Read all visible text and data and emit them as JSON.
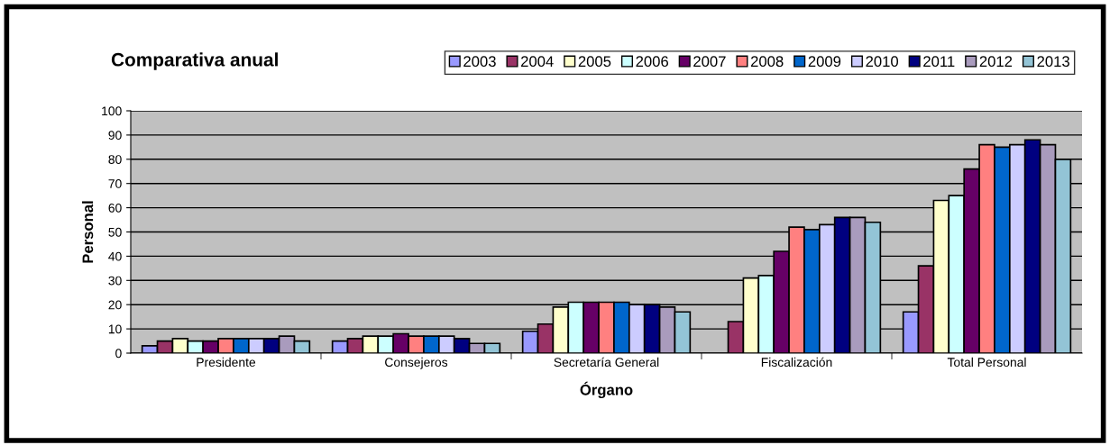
{
  "chart_data": {
    "type": "bar",
    "title": "Comparativa anual",
    "xlabel": "Órgano",
    "ylabel": "Personal",
    "categories": [
      "Presidente",
      "Consejeros",
      "Secretaría General",
      "Fiscalización",
      "Total Personal"
    ],
    "series": [
      {
        "name": "2003",
        "color": "#9999ff",
        "values": [
          3,
          5,
          9,
          null,
          17
        ]
      },
      {
        "name": "2004",
        "color": "#993366",
        "values": [
          5,
          6,
          12,
          13,
          36
        ]
      },
      {
        "name": "2005",
        "color": "#ffffcc",
        "values": [
          6,
          7,
          19,
          31,
          63
        ]
      },
      {
        "name": "2006",
        "color": "#ccffff",
        "values": [
          5,
          7,
          21,
          32,
          65
        ]
      },
      {
        "name": "2007",
        "color": "#660066",
        "values": [
          5,
          8,
          21,
          42,
          76
        ]
      },
      {
        "name": "2008",
        "color": "#ff8080",
        "values": [
          6,
          7,
          21,
          52,
          86
        ]
      },
      {
        "name": "2009",
        "color": "#0066cc",
        "values": [
          6,
          7,
          21,
          51,
          85
        ]
      },
      {
        "name": "2010",
        "color": "#ccccff",
        "values": [
          6,
          7,
          20,
          53,
          86
        ]
      },
      {
        "name": "2011",
        "color": "#000080",
        "values": [
          6,
          6,
          20,
          56,
          88
        ]
      },
      {
        "name": "2012",
        "color": "#a99bbd",
        "values": [
          7,
          4,
          19,
          56,
          86
        ]
      },
      {
        "name": "2013",
        "color": "#93c4d6",
        "values": [
          5,
          4,
          17,
          54,
          80
        ]
      }
    ],
    "ylim": [
      0,
      100
    ],
    "yticks": [
      0,
      10,
      20,
      30,
      40,
      50,
      60,
      70,
      80,
      90,
      100
    ],
    "grid": "y",
    "legend": "top right"
  }
}
